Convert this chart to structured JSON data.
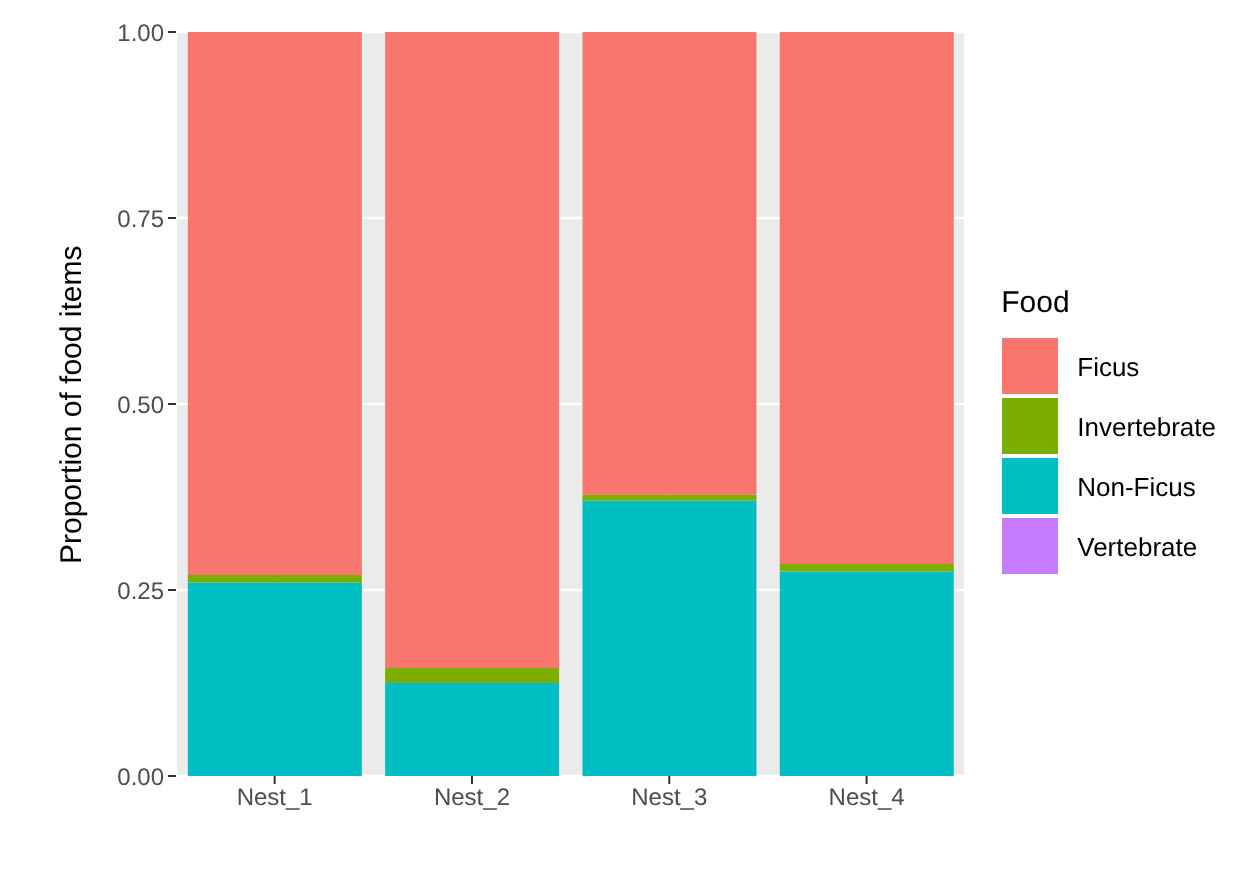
{
  "chart_data": {
    "type": "bar",
    "stacked": true,
    "ylabel": "Proportion of food items",
    "legend_title": "Food",
    "categories": [
      "Nest_1",
      "Nest_2",
      "Nest_3",
      "Nest_4"
    ],
    "series": [
      {
        "name": "Vertebrate",
        "color": "#c77cff",
        "values": [
          0,
          0,
          0,
          0
        ]
      },
      {
        "name": "Non-Ficus",
        "color": "#00bfc4",
        "values": [
          0.26,
          0.125,
          0.37,
          0.275
        ]
      },
      {
        "name": "Invertebrate",
        "color": "#7cae00",
        "values": [
          0.01,
          0.02,
          0.008,
          0.01
        ]
      },
      {
        "name": "Ficus",
        "color": "#f8766d",
        "values": [
          0.73,
          0.855,
          0.622,
          0.715
        ]
      }
    ],
    "ylim": [
      0,
      1
    ],
    "yticks": [
      {
        "value": 0,
        "label": "0.00"
      },
      {
        "value": 0.25,
        "label": "0.25"
      },
      {
        "value": 0.5,
        "label": "0.50"
      },
      {
        "value": 0.75,
        "label": "0.75"
      },
      {
        "value": 1,
        "label": "1.00"
      }
    ],
    "grid": true,
    "legend": "right"
  }
}
